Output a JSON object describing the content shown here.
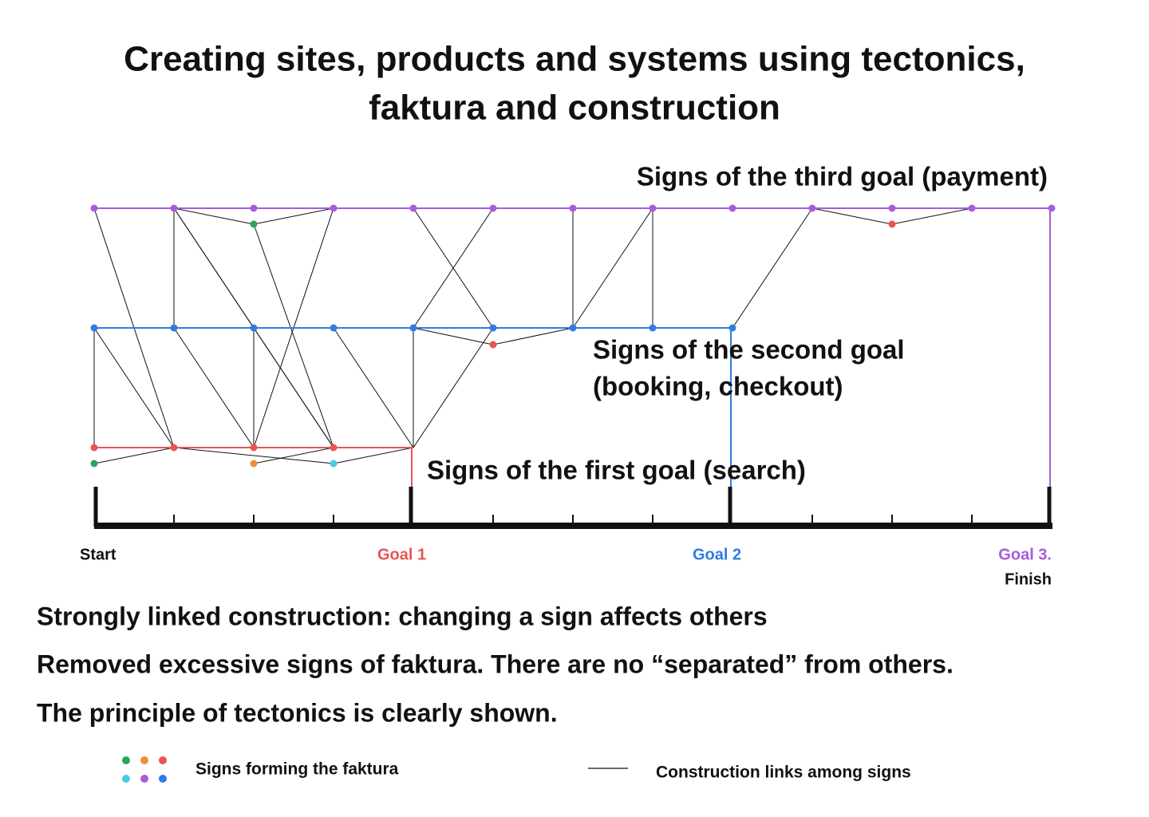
{
  "title": {
    "lines": [
      "Creating sites, products and systems using tectonics,",
      "faktura and construction"
    ]
  },
  "diagram": {
    "third_goal_label": "Signs of the third goal (payment)",
    "second_goal_label": [
      "Signs of the second goal",
      "(booking, checkout)"
    ],
    "first_goal_label": "Signs of the first goal (search)",
    "axis_labels": {
      "start": "Start",
      "goal_1": "Goal 1",
      "goal_2": "Goal 2",
      "goal_3": "Goal 3.",
      "finish": "Finish"
    }
  },
  "notes": [
    "Strongly linked construction: changing a sign affects others",
    "Removed excessive signs of faktura. There are no “separated” from others.",
    "The principle of tectonics is clearly shown."
  ],
  "legend": {
    "signs": "Signs forming the faktura",
    "links": "Construction links among signs"
  }
}
